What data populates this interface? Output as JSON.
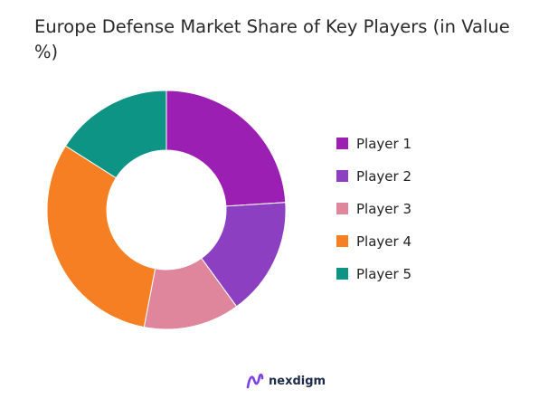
{
  "chart_data": {
    "type": "donut",
    "title": "Europe Defense Market Share of Key Players (in Value %)",
    "legend_position": "right",
    "series": [
      {
        "name": "Player 1",
        "value": 24,
        "color": "#9b1fb3"
      },
      {
        "name": "Player 2",
        "value": 16,
        "color": "#8d3fc2"
      },
      {
        "name": "Player 3",
        "value": 13,
        "color": "#e0869c"
      },
      {
        "name": "Player 4",
        "value": 31,
        "color": "#f57f22"
      },
      {
        "name": "Player 5",
        "value": 16,
        "color": "#0d9484"
      }
    ]
  },
  "brand": {
    "name": "nexdigm",
    "color": "#7b3fe4"
  }
}
